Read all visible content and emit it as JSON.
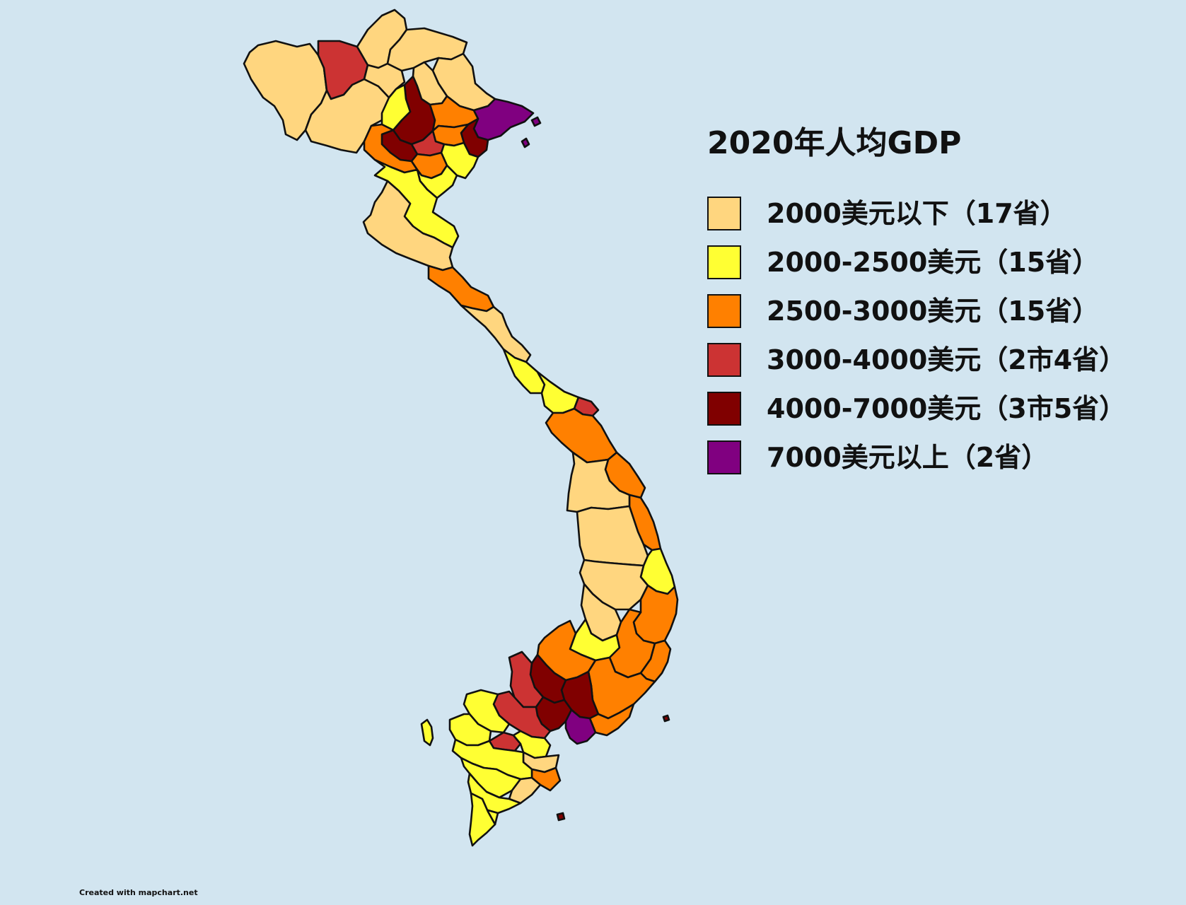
{
  "title": "2020年人均GDP",
  "credit": "Created with mapchart.net",
  "colors": {
    "background": "#d2e5f0",
    "border": "#111111"
  },
  "legend": [
    {
      "label": "2000美元以下（17省）",
      "color": "#ffd67f"
    },
    {
      "label": "2000-2500美元（15省）",
      "color": "#ffff33"
    },
    {
      "label": "2500-3000美元（15省）",
      "color": "#ff8000"
    },
    {
      "label": "3000-4000美元（2市4省）",
      "color": "#cc3333"
    },
    {
      "label": "4000-7000美元（3市5省）",
      "color": "#800000"
    },
    {
      "label": "7000美元以上（2省）",
      "color": "#800080"
    }
  ]
}
